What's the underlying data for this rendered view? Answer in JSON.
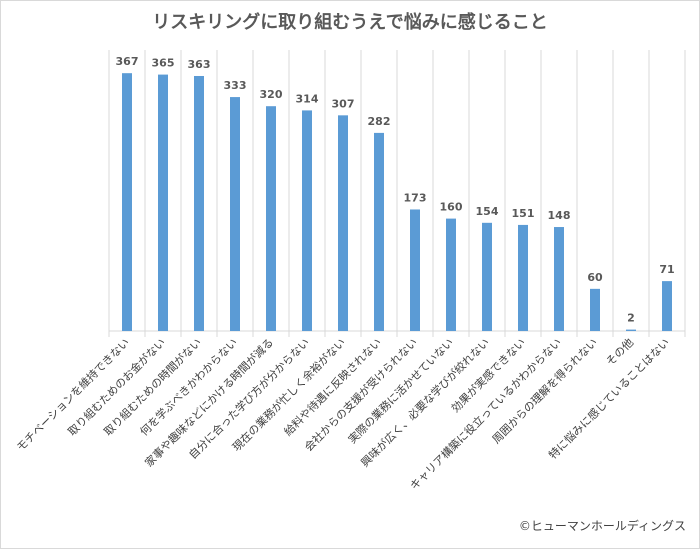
{
  "chart_data": {
    "type": "bar",
    "title": "リスキリングに取り組むうえで悩みに感じること",
    "categories": [
      "モチベーションを維持できない",
      "取り組むためのお金がない",
      "取り組むための時間がない",
      "何を学ぶべきかわからない",
      "家事や趣味などにかける時間が減る",
      "自分に合った学び方が分からない",
      "現在の業務が忙しく余裕がない",
      "給料や待遇に反映されない",
      "会社からの支援が受けられない",
      "実際の業務に活かせていない",
      "興味が広く、必要な学びが絞れない",
      "効果が実感できない",
      "キャリア構築に役立っているかわからない",
      "周囲からの理解を得られない",
      "その他",
      "特に悩みに感じていることはない"
    ],
    "values": [
      367,
      365,
      363,
      333,
      320,
      314,
      307,
      282,
      173,
      160,
      154,
      151,
      148,
      60,
      2,
      71
    ],
    "ylim": [
      0,
      400
    ],
    "grid": "vertical category separators",
    "data_labels": true,
    "colors": {
      "bar": "#5b9bd5",
      "label": "#595959",
      "grid": "#d9d9d9"
    }
  },
  "credit": "©ヒューマンホールディングス"
}
